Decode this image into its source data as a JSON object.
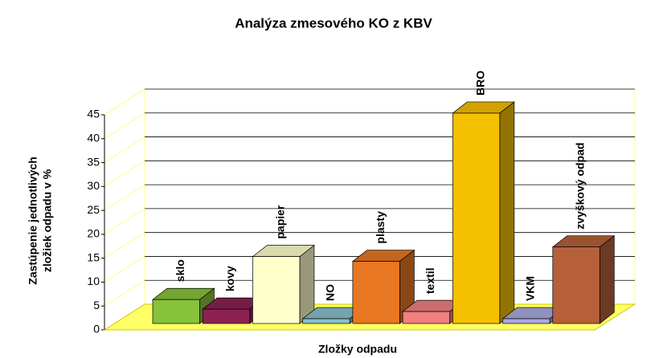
{
  "chart_data": {
    "type": "bar3d",
    "title": "Analýza zmesového KO z KBV",
    "xlabel": "Zložky odpadu",
    "ylabel": [
      "Zastúpenie jednotlivých",
      "zložiek odpadu v %"
    ],
    "categories": [
      "sklo",
      "kovy",
      "papier",
      "NO",
      "plasty",
      "textil",
      "BRO",
      "VKM",
      "zvyškový odpad"
    ],
    "values": [
      5,
      3,
      14,
      1,
      13,
      2.5,
      44,
      1,
      16
    ],
    "colors": [
      "#88c23a",
      "#8b2252",
      "#ffffcc",
      "#88c0c8",
      "#e87722",
      "#f08080",
      "#f5c000",
      "#aaaadd",
      "#b5603a"
    ],
    "ylim": [
      0,
      45
    ],
    "yticks": [
      0,
      5,
      10,
      15,
      20,
      25,
      30,
      35,
      40,
      45
    ],
    "grid": true
  }
}
